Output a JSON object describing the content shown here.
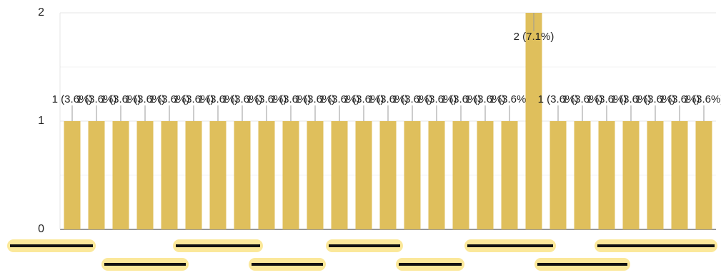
{
  "chart_data": {
    "type": "bar",
    "categories": [
      null,
      null,
      null,
      null,
      null,
      null,
      null,
      null,
      null,
      null,
      null,
      null,
      null,
      null,
      null,
      null,
      null,
      null,
      null,
      null,
      null,
      null,
      null,
      null,
      null,
      null,
      null
    ],
    "values": [
      1,
      1,
      1,
      1,
      1,
      1,
      1,
      1,
      1,
      1,
      1,
      1,
      1,
      1,
      1,
      1,
      1,
      1,
      1,
      2,
      1,
      1,
      1,
      1,
      1,
      1,
      1
    ],
    "value_labels": [
      "1 (3.6%)",
      "1 (3.6%)",
      "1 (3.6%)",
      "1 (3.6%)",
      "1 (3.6%)",
      "1 (3.6%)",
      "1 (3.6%)",
      "1 (3.6%)",
      "1 (3.6%)",
      "1 (3.6%)",
      "1 (3.6%)",
      "1 (3.6%)",
      "1 (3.6%)",
      "1 (3.6%)",
      "1 (3.6%)",
      "1 (3.6%)",
      "1 (3.6%)",
      "1 (3.6%)",
      "1 (3.6%)",
      "2 (7.1%)",
      "1 (3.6%)",
      "1 (3.6%)",
      "1 (3.6%)",
      "1 (3.6%)",
      "1 (3.6%)",
      "1 (3.6%)",
      "1 (3.6%)"
    ],
    "color": "#dfbf5c",
    "ylim": [
      0,
      2
    ],
    "yticks": [
      0,
      1,
      2
    ],
    "minor_yticks": [
      0.5,
      1.5
    ],
    "grid": true
  }
}
